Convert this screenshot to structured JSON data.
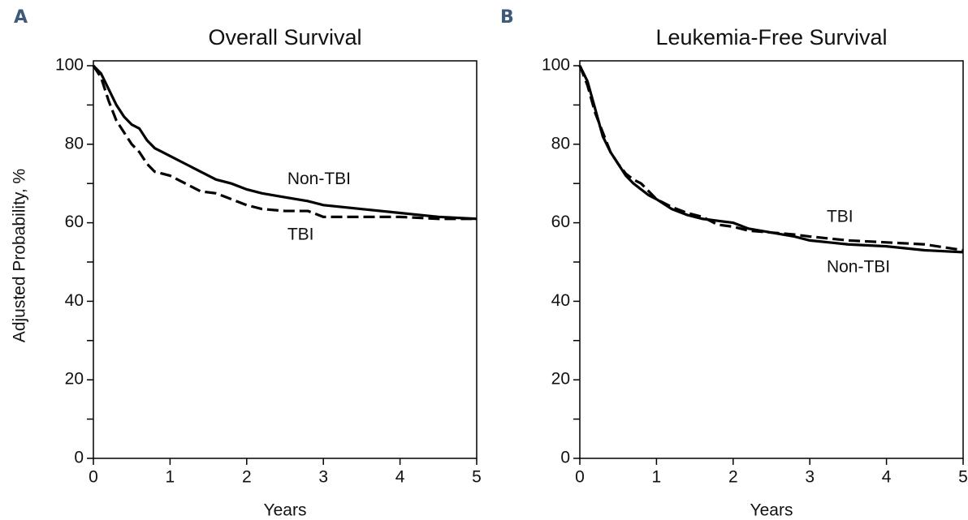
{
  "chart_data": [
    {
      "type": "line",
      "panel": "A",
      "title": "Overall Survival",
      "x_label": "Years",
      "y_label": "Adjusted Probability, %",
      "x": [
        0,
        0.1,
        0.2,
        0.3,
        0.4,
        0.5,
        0.6,
        0.7,
        0.8,
        0.9,
        1,
        1.2,
        1.4,
        1.6,
        1.8,
        2,
        2.2,
        2.5,
        2.8,
        3,
        3.5,
        4,
        4.5,
        5
      ],
      "series": [
        {
          "name": "Non-TBI",
          "color": "#000000",
          "style": "solid",
          "values": [
            100,
            98,
            94,
            90,
            87,
            85,
            84,
            81,
            79,
            78,
            77,
            75,
            73,
            71,
            70,
            68.5,
            67.5,
            66.5,
            65.5,
            64.5,
            63.5,
            62.5,
            61.5,
            61
          ]
        },
        {
          "name": "TBI",
          "color": "#000000",
          "style": "dashed",
          "values": [
            100,
            97,
            91,
            86,
            83,
            80,
            78,
            75,
            73,
            72.5,
            72,
            70,
            68,
            67.5,
            66,
            64.5,
            63.5,
            63,
            63,
            61.5,
            61.5,
            61.5,
            61,
            61
          ]
        }
      ],
      "annotations": [
        {
          "text": "Non-TBI",
          "x": 2.53,
          "y": 71
        },
        {
          "text": "TBI",
          "x": 2.53,
          "y": 56.8
        }
      ],
      "xlim": [
        0,
        5
      ],
      "xticks": [
        0,
        1,
        2,
        3,
        4,
        5
      ],
      "ylim": [
        0,
        100
      ],
      "yticks": [
        0,
        20,
        40,
        60,
        80,
        100
      ],
      "yminorticks": [
        10,
        30,
        50,
        70,
        90
      ]
    },
    {
      "type": "line",
      "panel": "B",
      "title": "Leukemia-Free Survival",
      "x_label": "Years",
      "x": [
        0,
        0.1,
        0.2,
        0.3,
        0.4,
        0.5,
        0.6,
        0.7,
        0.8,
        0.9,
        1,
        1.2,
        1.4,
        1.6,
        1.8,
        2,
        2.2,
        2.5,
        2.8,
        3,
        3.5,
        4,
        4.5,
        5
      ],
      "series": [
        {
          "name": "Non-TBI",
          "color": "#000000",
          "style": "solid",
          "values": [
            100,
            96,
            89,
            82,
            78,
            75,
            72,
            70,
            68.5,
            67,
            66,
            63.5,
            62,
            61,
            60.5,
            60,
            58.5,
            57.5,
            56.5,
            55.5,
            54.5,
            54,
            53,
            52.5
          ]
        },
        {
          "name": "TBI",
          "color": "#000000",
          "style": "dashed",
          "values": [
            100,
            95,
            88,
            83,
            78,
            75,
            72.5,
            71,
            70,
            68,
            66,
            64,
            62.5,
            61.5,
            59.5,
            59,
            58,
            57.5,
            57,
            56.5,
            55.5,
            55,
            54.5,
            53
          ]
        }
      ],
      "annotations": [
        {
          "text": "TBI",
          "x": 3.22,
          "y": 61.4
        },
        {
          "text": "Non-TBI",
          "x": 3.22,
          "y": 48.6
        }
      ],
      "xlim": [
        0,
        5
      ],
      "xticks": [
        0,
        1,
        2,
        3,
        4,
        5
      ],
      "ylim": [
        0,
        100
      ],
      "yticks": [
        0,
        20,
        40,
        60,
        80,
        100
      ],
      "yminorticks": [
        10,
        30,
        50,
        70,
        90
      ]
    }
  ]
}
